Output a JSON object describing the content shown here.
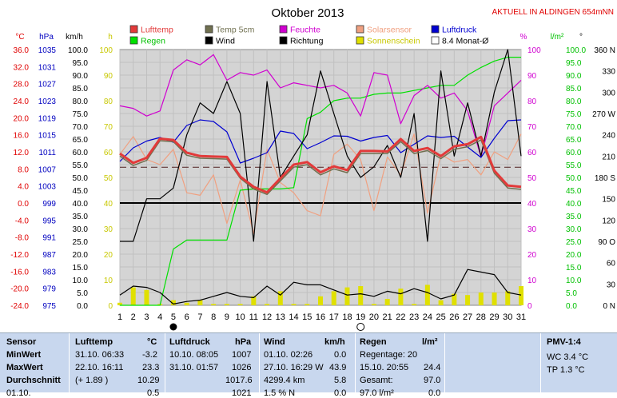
{
  "title": "Oktober 2013",
  "station_note": "AKTUELL IN ALDINGEN 654mNN",
  "legend": [
    {
      "label": "Lufttemp",
      "color": "#e23a3a"
    },
    {
      "label": "Temp 5cm",
      "color": "#707050"
    },
    {
      "label": "Feuchte",
      "color": "#d000d0"
    },
    {
      "label": "Solarsensor",
      "color": "#f0a080"
    },
    {
      "label": "Luftdruck",
      "color": "#0000d0"
    },
    {
      "label": "Regen",
      "color": "#00e000"
    },
    {
      "label": "Wind",
      "color": "#000000"
    },
    {
      "label": "Richtung",
      "color": "#000000"
    },
    {
      "label": "Sonnenschein",
      "color": "#e0e000"
    },
    {
      "label": "8.4 Monat-Ø",
      "color": "#ffffff"
    }
  ],
  "axes": {
    "temp": {
      "unit": "°C",
      "ticks": [
        "36.0",
        "32.0",
        "28.0",
        "24.0",
        "20.0",
        "16.0",
        "12.0",
        "8.0",
        "4.0",
        "0.0",
        "-4.0",
        "-8.0",
        "-12.0",
        "-16.0",
        "-20.0",
        "-24.0"
      ],
      "color": "#e00000"
    },
    "pressure": {
      "unit": "hPa",
      "ticks": [
        "1035",
        "1031",
        "1027",
        "1023",
        "1019",
        "1015",
        "1011",
        "1007",
        "1003",
        "999",
        "995",
        "991",
        "987",
        "983",
        "979",
        "975"
      ],
      "color": "#0000c0"
    },
    "wind": {
      "unit": "km/h",
      "ticks": [
        "100.0",
        "95.0",
        "90.0",
        "85.0",
        "80.0",
        "75.0",
        "70.0",
        "65.0",
        "60.0",
        "55.0",
        "50.0",
        "45.0",
        "40.0",
        "35.0",
        "30.0",
        "25.0",
        "20.0",
        "15.0",
        "10.0",
        "5.0",
        "0.0"
      ],
      "color": "#000000"
    },
    "sun": {
      "unit": "h",
      "ticks": [
        "100",
        "90",
        "80",
        "70",
        "60",
        "50",
        "40",
        "30",
        "20",
        "10",
        "0"
      ],
      "color": "#c8c800"
    },
    "humidity": {
      "unit": "%",
      "ticks": [
        "100",
        "90",
        "80",
        "70",
        "60",
        "50",
        "40",
        "30",
        "20",
        "10",
        "0"
      ],
      "color": "#d000d0"
    },
    "rain": {
      "unit": "l/m²",
      "ticks": [
        "100.0",
        "95.0",
        "90.0",
        "85.0",
        "80.0",
        "75.0",
        "70.0",
        "65.0",
        "60.0",
        "55.0",
        "50.0",
        "45.0",
        "40.0",
        "35.0",
        "30.0",
        "25.0",
        "20.0",
        "15.0",
        "10.0",
        "5.0",
        "0.0"
      ],
      "color": "#00c000"
    },
    "direction": {
      "unit": "°",
      "ticks": [
        "360 N",
        "330",
        "300",
        "270 W",
        "240",
        "210",
        "180 S",
        "150",
        "120",
        "90 O",
        "60",
        "30",
        "0 N"
      ],
      "color": "#000000"
    },
    "days": [
      "1",
      "2",
      "3",
      "4",
      "5",
      "6",
      "7",
      "8",
      "9",
      "10",
      "11",
      "12",
      "13",
      "14",
      "15",
      "16",
      "17",
      "18",
      "19",
      "20",
      "21",
      "22",
      "23",
      "24",
      "25",
      "26",
      "27",
      "28",
      "29",
      "30",
      "31"
    ]
  },
  "moon_marks": [
    {
      "day": 5,
      "phase": "new-moon"
    },
    {
      "day": 19,
      "phase": "full-moon"
    }
  ],
  "chart_data": {
    "type": "line",
    "title": "Oktober 2013",
    "x": [
      1,
      2,
      3,
      4,
      5,
      6,
      7,
      8,
      9,
      10,
      11,
      12,
      13,
      14,
      15,
      16,
      17,
      18,
      19,
      20,
      21,
      22,
      23,
      24,
      25,
      26,
      27,
      28,
      29,
      30,
      31
    ],
    "month_avg_temp": 8.4,
    "series": [
      {
        "name": "Lufttemp",
        "unit": "°C",
        "color": "#e23a3a",
        "values": [
          11.6,
          9.4,
          10.6,
          15.1,
          14.8,
          11.8,
          11.0,
          10.9,
          10.8,
          6.2,
          3.8,
          2.5,
          5.8,
          9.0,
          9.6,
          7.2,
          8.6,
          7.7,
          12.2,
          12.2,
          12.1,
          15.0,
          12.2,
          12.9,
          11.0,
          13.3,
          13.8,
          15.5,
          7.6,
          4.1,
          3.8
        ]
      },
      {
        "name": "Temp 5cm",
        "unit": "°C",
        "color": "#707050",
        "values": [
          11.0,
          8.8,
          10.0,
          14.6,
          14.4,
          11.2,
          10.5,
          10.4,
          10.3,
          5.8,
          3.3,
          2.0,
          5.2,
          8.4,
          9.0,
          6.6,
          8.0,
          7.1,
          11.6,
          11.6,
          11.6,
          14.4,
          11.6,
          12.3,
          10.4,
          12.6,
          13.2,
          14.8,
          7.0,
          3.5,
          3.2
        ]
      },
      {
        "name": "Feuchte",
        "unit": "%",
        "color": "#d000d0",
        "values": [
          78,
          77,
          74,
          76,
          92,
          96,
          94,
          98,
          88,
          91,
          90,
          92,
          85,
          87,
          86,
          85,
          86,
          83,
          74,
          91,
          90,
          71,
          82,
          86,
          81,
          83,
          76,
          58,
          78,
          83,
          88
        ]
      },
      {
        "name": "Solarsensor",
        "unit": "W/m²",
        "color": "#f0a080",
        "values": [
          59,
          66,
          57,
          55,
          61,
          44,
          43,
          51,
          32,
          49,
          28,
          61,
          48,
          44,
          37,
          35,
          59,
          63,
          57,
          37,
          58,
          51,
          67,
          36,
          59,
          56,
          57,
          51,
          60,
          57,
          67
        ]
      },
      {
        "name": "Luftdruck",
        "unit": "hPa",
        "color": "#0000d0",
        "values": [
          1011.0,
          1014.4,
          1016.1,
          1017.0,
          1015.8,
          1020.0,
          1021.4,
          1021.0,
          1018.4,
          1010.6,
          1011.8,
          1013.2,
          1018.6,
          1018.0,
          1014.2,
          1015.7,
          1017.4,
          1017.3,
          1016.1,
          1017.0,
          1017.5,
          1013.2,
          1015.3,
          1017.4,
          1017.0,
          1017.3,
          1014.6,
          1012.0,
          1016.8,
          1021.2,
          1021.4
        ]
      },
      {
        "name": "Regen",
        "unit": "l/m²",
        "color": "#00e000",
        "values": [
          0.0,
          0.0,
          0.0,
          0.0,
          22.0,
          25.5,
          25.5,
          25.5,
          25.5,
          45.0,
          45.5,
          45.5,
          45.5,
          46.0,
          73.0,
          75.5,
          80.0,
          81.0,
          81.0,
          82.5,
          83.0,
          83.0,
          84.0,
          85.0,
          86.0,
          86.0,
          90.0,
          93.0,
          95.5,
          97.0,
          97.0
        ]
      },
      {
        "name": "Wind",
        "unit": "km/h",
        "color": "#000000",
        "values": [
          4.0,
          7.5,
          7.0,
          5.0,
          0.5,
          1.5,
          2.0,
          3.5,
          5.0,
          3.5,
          3.0,
          7.5,
          4.0,
          9.0,
          8.0,
          8.0,
          6.0,
          4.0,
          4.5,
          3.5,
          5.5,
          4.5,
          6.5,
          5.0,
          2.5,
          4.0,
          14.0,
          13.0,
          12.0,
          5.0,
          4.0
        ]
      },
      {
        "name": "Richtung",
        "unit": "°",
        "color": "#000000",
        "values": [
          90,
          90,
          150,
          150,
          165,
          240,
          285,
          270,
          315,
          270,
          90,
          315,
          180,
          210,
          240,
          330,
          270,
          210,
          180,
          195,
          225,
          180,
          270,
          90,
          330,
          210,
          285,
          210,
          300,
          360,
          210
        ]
      },
      {
        "name": "Sonnenschein",
        "unit": "h",
        "color": "#e0e000",
        "values": [
          1.0,
          7.0,
          6.0,
          0.5,
          2.0,
          1.0,
          2.0,
          0.5,
          0.5,
          0.5,
          3.5,
          0.5,
          5.5,
          0.5,
          0.5,
          3.5,
          5.5,
          7.0,
          7.5,
          0.5,
          2.5,
          6.5,
          0.5,
          8.0,
          2.0,
          4.5,
          4.0,
          5.0,
          5.0,
          5.5,
          7.5
        ]
      }
    ]
  },
  "summary": {
    "sensor": {
      "title": "Sensor",
      "rows": [
        "MinWert",
        "MaxWert",
        "Durchschnitt",
        "01.10."
      ]
    },
    "lufttemp": {
      "title": "Lufttemp",
      "unit": "°C",
      "rows": [
        [
          "31.10.  06:33",
          "-3.2"
        ],
        [
          "22.10.  16:11",
          "23.3"
        ],
        [
          "(+ 1.89 )",
          "10.29"
        ],
        [
          "",
          "0.5"
        ]
      ]
    },
    "luftdruck": {
      "title": "Luftdruck",
      "unit": "hPa",
      "rows": [
        [
          "10.10.  08:05",
          "1007"
        ],
        [
          "31.10.  01:57",
          "1026"
        ],
        [
          "",
          "1017.6"
        ],
        [
          "",
          "1021"
        ]
      ]
    },
    "wind": {
      "title": "Wind",
      "unit": "km/h",
      "rows": [
        [
          "01.10.  02:26",
          "0.0"
        ],
        [
          "27.10.  16:29  W",
          "43.9"
        ],
        [
          "4299.4 km",
          "5.8"
        ],
        [
          "1.5 % N",
          "0.0"
        ]
      ]
    },
    "regen": {
      "title": "Regen",
      "unit": "l/m²",
      "rows": [
        [
          "Regentage: 20",
          ""
        ],
        [
          "15.10.  20:55",
          "24.4"
        ],
        [
          "Gesamt:",
          "97.0"
        ],
        [
          "97.0 l/m²",
          "0.0"
        ]
      ]
    },
    "pmv": {
      "title": "PMV-1:4",
      "rows": [
        "WC 3.4 °C",
        "TP 1.3 °C"
      ]
    }
  }
}
